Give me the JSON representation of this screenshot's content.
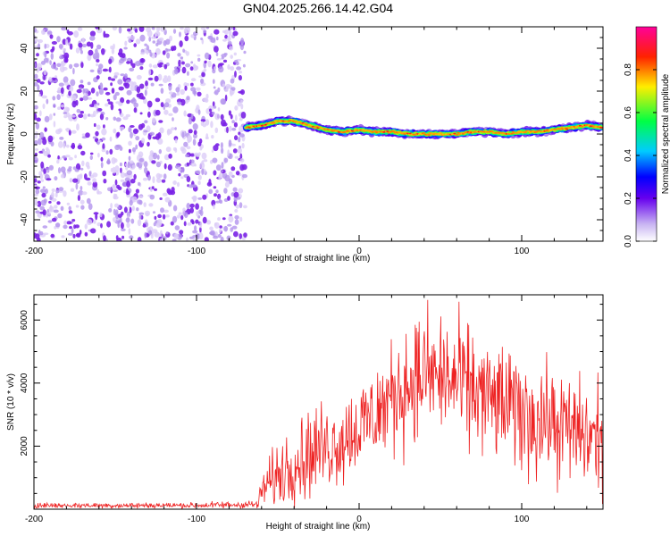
{
  "title": "GN04.2025.266.14.42.G04",
  "chart_data": [
    {
      "type": "heatmap",
      "name": "spectrogram",
      "xlabel": "Height of straight line (km)",
      "ylabel": "Frequency (Hz)",
      "xlim": [
        -200,
        150
      ],
      "ylim": [
        -50,
        50
      ],
      "xticks": [
        -200,
        -100,
        0,
        100
      ],
      "yticks": [
        -40,
        -20,
        0,
        20,
        40
      ],
      "noise_region_x": [
        -200,
        -70
      ],
      "signal_region_x": [
        -70,
        150
      ],
      "signal_track": {
        "x": [
          -70,
          -60,
          -50,
          -40,
          -30,
          -20,
          -10,
          0,
          10,
          20,
          30,
          40,
          50,
          60,
          70,
          80,
          90,
          100,
          110,
          120,
          130,
          140,
          150
        ],
        "freq": [
          3,
          4,
          6,
          6,
          4,
          2,
          1,
          2,
          1,
          1,
          0,
          0,
          0,
          0,
          1,
          1,
          0,
          1,
          1,
          2,
          3,
          4,
          3
        ]
      },
      "colorbar": {
        "label": "Normalized spectral amplitude",
        "range": [
          0,
          1
        ],
        "ticks": [
          0.0,
          0.2,
          0.4,
          0.6,
          0.8
        ]
      }
    },
    {
      "type": "line",
      "name": "snr",
      "xlabel": "Height of straight line (km)",
      "ylabel": "SNR (10 * v/v)",
      "xlim": [
        -200,
        150
      ],
      "ylim": [
        0,
        6800
      ],
      "xticks": [
        -200,
        -100,
        0,
        100
      ],
      "yticks": [
        2000,
        4000,
        6000
      ],
      "color": "#ee2222",
      "envelope": {
        "x": [
          -200,
          -100,
          -62,
          -60,
          -50,
          -40,
          -30,
          -20,
          -10,
          0,
          10,
          20,
          30,
          40,
          50,
          60,
          70,
          80,
          90,
          100,
          110,
          120,
          130,
          140,
          150
        ],
        "mean": [
          120,
          120,
          150,
          600,
          1100,
          1500,
          1800,
          2000,
          2200,
          2600,
          3000,
          3500,
          4000,
          4300,
          4200,
          4000,
          3800,
          3500,
          3300,
          3000,
          2900,
          2700,
          2500,
          2300,
          2200
        ],
        "spread": [
          70,
          80,
          120,
          500,
          900,
          1100,
          1200,
          1200,
          1200,
          1300,
          1400,
          1500,
          1600,
          1700,
          1700,
          1700,
          1700,
          1600,
          1600,
          1600,
          1600,
          1500,
          1500,
          1500,
          1500
        ]
      }
    }
  ]
}
